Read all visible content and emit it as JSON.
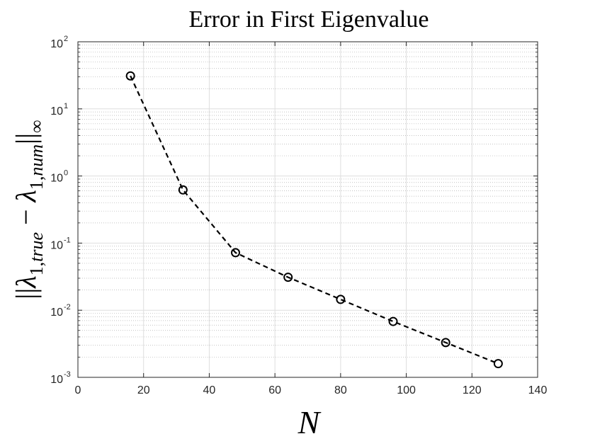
{
  "chart_data": {
    "type": "line",
    "title": "Error in First Eigenvalue",
    "xlabel": "N",
    "ylabel": {
      "open": "||",
      "lambda": "λ",
      "sub1": "1,",
      "sub1_italic": "true",
      "minus": " − ",
      "sub2": "1,",
      "sub2_italic": "num",
      "close": "||",
      "norm_sub": "∞"
    },
    "xlim": [
      0,
      140
    ],
    "ylim": [
      0.001,
      100
    ],
    "yscale": "log",
    "grid": true,
    "minor_grid": true,
    "xticks": [
      {
        "value": 0,
        "label": "0"
      },
      {
        "value": 20,
        "label": "20"
      },
      {
        "value": 40,
        "label": "40"
      },
      {
        "value": 60,
        "label": "60"
      },
      {
        "value": 80,
        "label": "80"
      },
      {
        "value": 100,
        "label": "100"
      },
      {
        "value": 120,
        "label": "120"
      },
      {
        "value": 140,
        "label": "140"
      }
    ],
    "yticks": [
      {
        "value": 0.001,
        "base": "10",
        "exp": "-3"
      },
      {
        "value": 0.01,
        "base": "10",
        "exp": "-2"
      },
      {
        "value": 0.1,
        "base": "10",
        "exp": "-1"
      },
      {
        "value": 1,
        "base": "10",
        "exp": "0"
      },
      {
        "value": 10,
        "base": "10",
        "exp": "1"
      },
      {
        "value": 100,
        "base": "10",
        "exp": "2"
      }
    ],
    "series": [
      {
        "x": [
          16,
          32,
          48,
          64,
          80,
          96,
          112,
          128
        ],
        "y": [
          31,
          0.62,
          0.072,
          0.031,
          0.0145,
          0.0068,
          0.0033,
          0.0016
        ],
        "color": "#000000",
        "line_style": "dashed",
        "marker": "circle"
      }
    ]
  }
}
